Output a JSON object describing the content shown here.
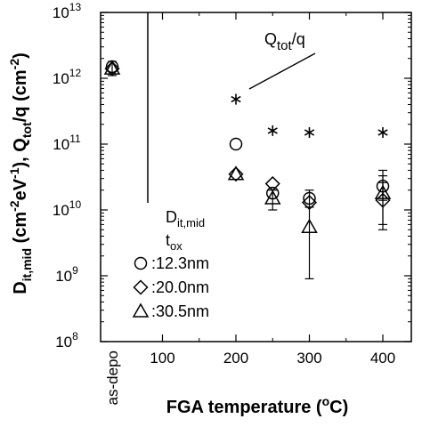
{
  "chart_data": {
    "type": "scatter",
    "xlabel": "FGA temperature (°C)",
    "ylabel": "D_it,mid (cm-2eV-1), Q_tot/q (cm-2)",
    "yscale": "log",
    "ylim": [
      100000000.0,
      10000000000000.0
    ],
    "y_ticks": [
      {
        "value": 100000000.0,
        "base": "10",
        "exp": "8"
      },
      {
        "value": 1000000000.0,
        "base": "10",
        "exp": "9"
      },
      {
        "value": 10000000000.0,
        "base": "10",
        "exp": "10"
      },
      {
        "value": 100000000000.0,
        "base": "10",
        "exp": "11"
      },
      {
        "value": 1000000000000.0,
        "base": "10",
        "exp": "12"
      },
      {
        "value": 10000000000000.0,
        "base": "10",
        "exp": "13"
      }
    ],
    "x_tick_labels": [
      "100",
      "200",
      "300",
      "400"
    ],
    "x_category_label": "as-depo",
    "grid": false,
    "legend_title": "D_it,mid t_ox",
    "series": [
      {
        "name": "12.3nm",
        "marker": "circle",
        "points": [
          {
            "x": "as-depo",
            "y": 1500000000000.0,
            "err_low": 1100000000000.0,
            "err_high": 1800000000000.0
          },
          {
            "x": 200,
            "y": 100000000000.0
          },
          {
            "x": 250,
            "y": 18000000000.0
          },
          {
            "x": 300,
            "y": 15000000000.0,
            "err_low": 11000000000.0,
            "err_high": 20000000000.0
          },
          {
            "x": 400,
            "y": 23000000000.0,
            "err_low": 14000000000.0,
            "err_high": 40000000000.0
          }
        ]
      },
      {
        "name": "20.0nm",
        "marker": "diamond",
        "points": [
          {
            "x": "as-depo",
            "y": 1400000000000.0
          },
          {
            "x": 200,
            "y": 35000000000.0
          },
          {
            "x": 250,
            "y": 25000000000.0
          },
          {
            "x": 300,
            "y": 13000000000.0
          },
          {
            "x": 400,
            "y": 14000000000.0,
            "err_low": 6000000000.0,
            "err_high": 26000000000.0
          }
        ]
      },
      {
        "name": "30.5nm",
        "marker": "triangle",
        "points": [
          {
            "x": "as-depo",
            "y": 1400000000000.0
          },
          {
            "x": 200,
            "y": 35000000000.0
          },
          {
            "x": 250,
            "y": 15000000000.0,
            "err_low": 10000000000.0,
            "err_high": 20000000000.0
          },
          {
            "x": 300,
            "y": 5500000000.0,
            "err_low": 900000000.0,
            "err_high": 11000000000.0
          },
          {
            "x": 400,
            "y": 18000000000.0,
            "err_low": 5000000000.0,
            "err_high": 33000000000.0
          }
        ]
      },
      {
        "name": "Q_tot/q",
        "marker": "asterisk",
        "points": [
          {
            "x": 200,
            "y": 480000000000.0
          },
          {
            "x": 250,
            "y": 160000000000.0
          },
          {
            "x": 300,
            "y": 150000000000.0
          },
          {
            "x": 400,
            "y": 150000000000.0
          }
        ]
      }
    ],
    "annotation": "Q_tot/q"
  },
  "colors": {
    "ink": "#000000",
    "background": "#ffffff"
  }
}
